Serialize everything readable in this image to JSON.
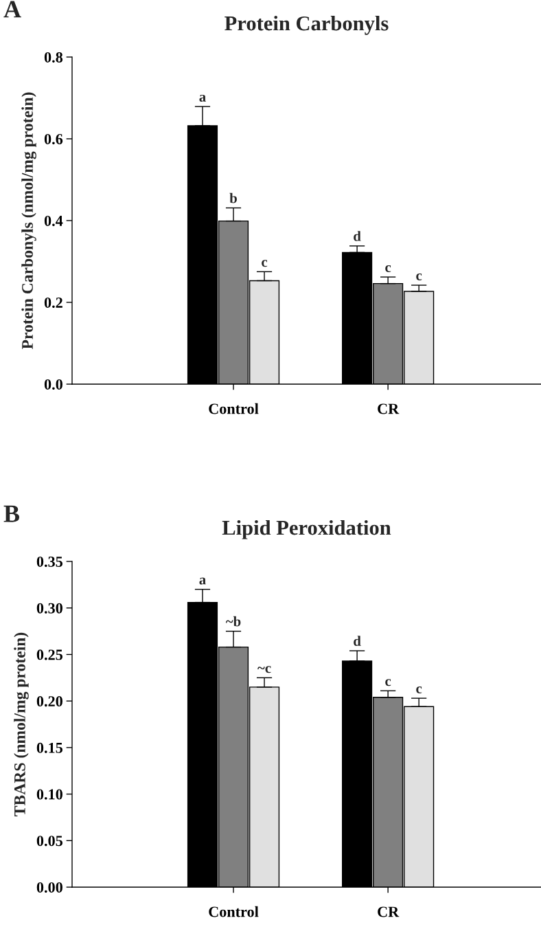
{
  "chart_data": [
    {
      "type": "bar",
      "title": "Protein Carbonyls",
      "ylabel": "Protein Carbonyls (nmol/mg protein)",
      "annotations": [
        "A"
      ],
      "categories": [
        "Control",
        "CR"
      ],
      "series": [
        {
          "color": "#000000",
          "values": [
            0.632,
            0.322
          ],
          "errors": [
            0.047,
            0.016
          ],
          "value_labels": [
            "a",
            "d"
          ]
        },
        {
          "color": "#808080",
          "values": [
            0.399,
            0.246
          ],
          "errors": [
            0.032,
            0.016
          ],
          "value_labels": [
            "b",
            "c"
          ]
        },
        {
          "color": "#e0e0e0",
          "values": [
            0.253,
            0.227
          ],
          "errors": [
            0.022,
            0.015
          ],
          "value_labels": [
            "c",
            "c"
          ]
        }
      ],
      "ylim": [
        0,
        0.8
      ],
      "yticks": [
        {
          "value": 0,
          "label": "0.0"
        },
        0.2,
        0.4,
        0.6,
        0.8
      ],
      "grid": false,
      "legend": false
    },
    {
      "type": "bar",
      "title": "Lipid Peroxidation",
      "ylabel": "TBARS (nmol/mg protein)",
      "annotations": [
        "B"
      ],
      "categories": [
        "Control",
        "CR"
      ],
      "series": [
        {
          "color": "#000000",
          "values": [
            0.306,
            0.243
          ],
          "errors": [
            0.014,
            0.011
          ],
          "value_labels": [
            "a",
            "d"
          ]
        },
        {
          "color": "#808080",
          "values": [
            0.258,
            0.204
          ],
          "errors": [
            0.017,
            0.007
          ],
          "value_labels": [
            "~b",
            "c"
          ]
        },
        {
          "color": "#e0e0e0",
          "values": [
            0.215,
            0.194
          ],
          "errors": [
            0.01,
            0.009
          ],
          "value_labels": [
            "~c",
            "c"
          ]
        }
      ],
      "ylim": [
        0,
        0.35
      ],
      "yticks": [
        {
          "value": 0,
          "label": "0.00"
        },
        0.05,
        {
          "value": 0.1,
          "label": "0.10"
        },
        0.15,
        {
          "value": 0.2,
          "label": "0.20"
        },
        0.25,
        {
          "value": 0.3,
          "label": "0.30"
        },
        0.35
      ],
      "grid": false,
      "legend": false
    }
  ]
}
